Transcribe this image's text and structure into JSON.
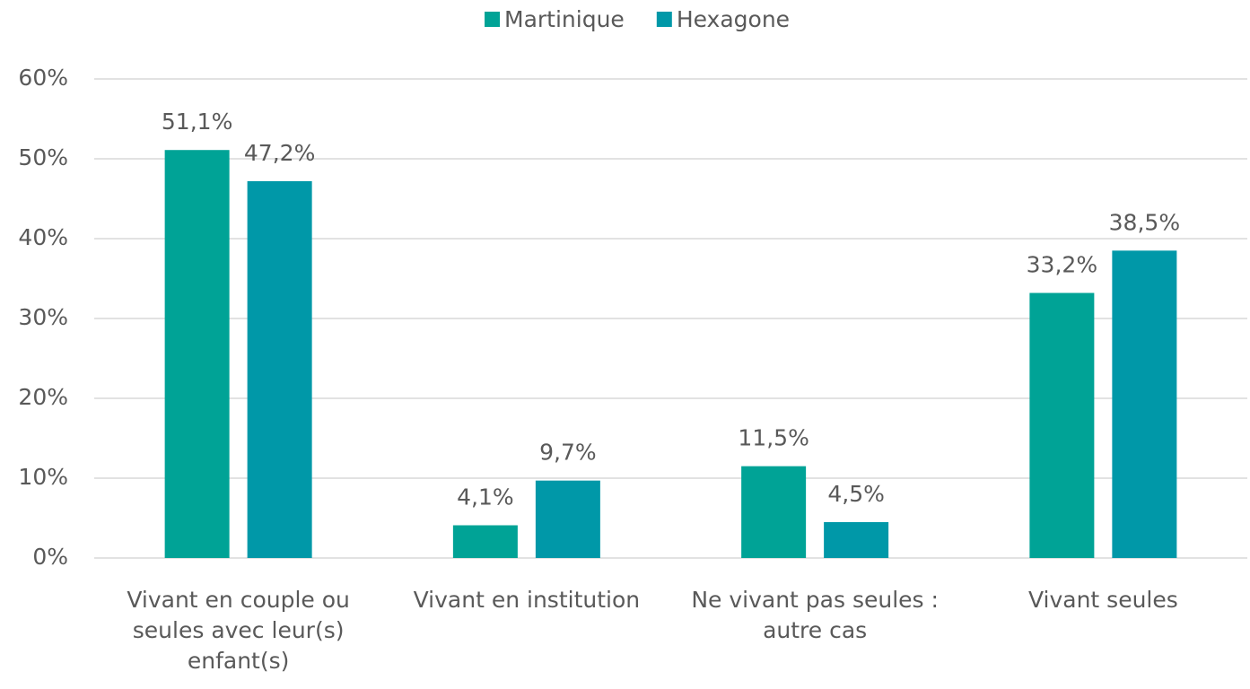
{
  "chart_data": {
    "type": "bar",
    "categories": [
      "Vivant en couple ou seules avec leur(s) enfant(s)",
      "Vivant en institution",
      "Ne vivant pas seules : autre cas",
      "Vivant seules"
    ],
    "series": [
      {
        "name": "Martinique",
        "color": "#00a396",
        "values": [
          51.1,
          4.1,
          11.5,
          33.2
        ],
        "value_labels": [
          "51,1%",
          "4,1%",
          "11,5%",
          "33,2%"
        ]
      },
      {
        "name": "Hexagone",
        "color": "#0098a8",
        "values": [
          47.2,
          9.7,
          4.5,
          38.5
        ],
        "value_labels": [
          "47,2%",
          "9,7%",
          "4,5%",
          "38,5%"
        ]
      }
    ],
    "ylim": [
      0,
      60
    ],
    "yticks": [
      {
        "value": 0,
        "label": "0%"
      },
      {
        "value": 10,
        "label": "10%"
      },
      {
        "value": 20,
        "label": "20%"
      },
      {
        "value": 30,
        "label": "30%"
      },
      {
        "value": 40,
        "label": "40%"
      },
      {
        "value": 50,
        "label": "50%"
      },
      {
        "value": 60,
        "label": "60%"
      }
    ],
    "grid": true,
    "legend": "top"
  }
}
